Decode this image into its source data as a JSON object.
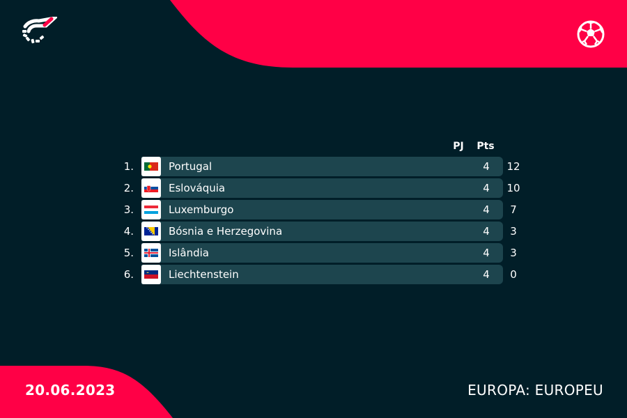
{
  "colors": {
    "background": "#011e28",
    "accent": "#ff0046",
    "row_bg": "#1d454e"
  },
  "header": {
    "logo_icon": "flashscore-logo-icon",
    "sport_icon": "soccer-ball-icon"
  },
  "standings": {
    "columns": {
      "pj": "PJ",
      "pts": "Pts"
    },
    "rows": [
      {
        "rank": "1.",
        "team": "Portugal",
        "flag": "portugal-flag-icon",
        "pj": "4",
        "pts": "12"
      },
      {
        "rank": "2.",
        "team": "Eslováquia",
        "flag": "slovakia-flag-icon",
        "pj": "4",
        "pts": "10"
      },
      {
        "rank": "3.",
        "team": "Luxemburgo",
        "flag": "luxembourg-flag-icon",
        "pj": "4",
        "pts": "7"
      },
      {
        "rank": "4.",
        "team": "Bósnia e Herzegovina",
        "flag": "bosnia-flag-icon",
        "pj": "4",
        "pts": "3"
      },
      {
        "rank": "5.",
        "team": "Islândia",
        "flag": "iceland-flag-icon",
        "pj": "4",
        "pts": "3"
      },
      {
        "rank": "6.",
        "team": "Liechtenstein",
        "flag": "liechtenstein-flag-icon",
        "pj": "4",
        "pts": "0"
      }
    ]
  },
  "footer": {
    "date": "20.06.2023",
    "competition": "EUROPA: EUROPEU"
  }
}
